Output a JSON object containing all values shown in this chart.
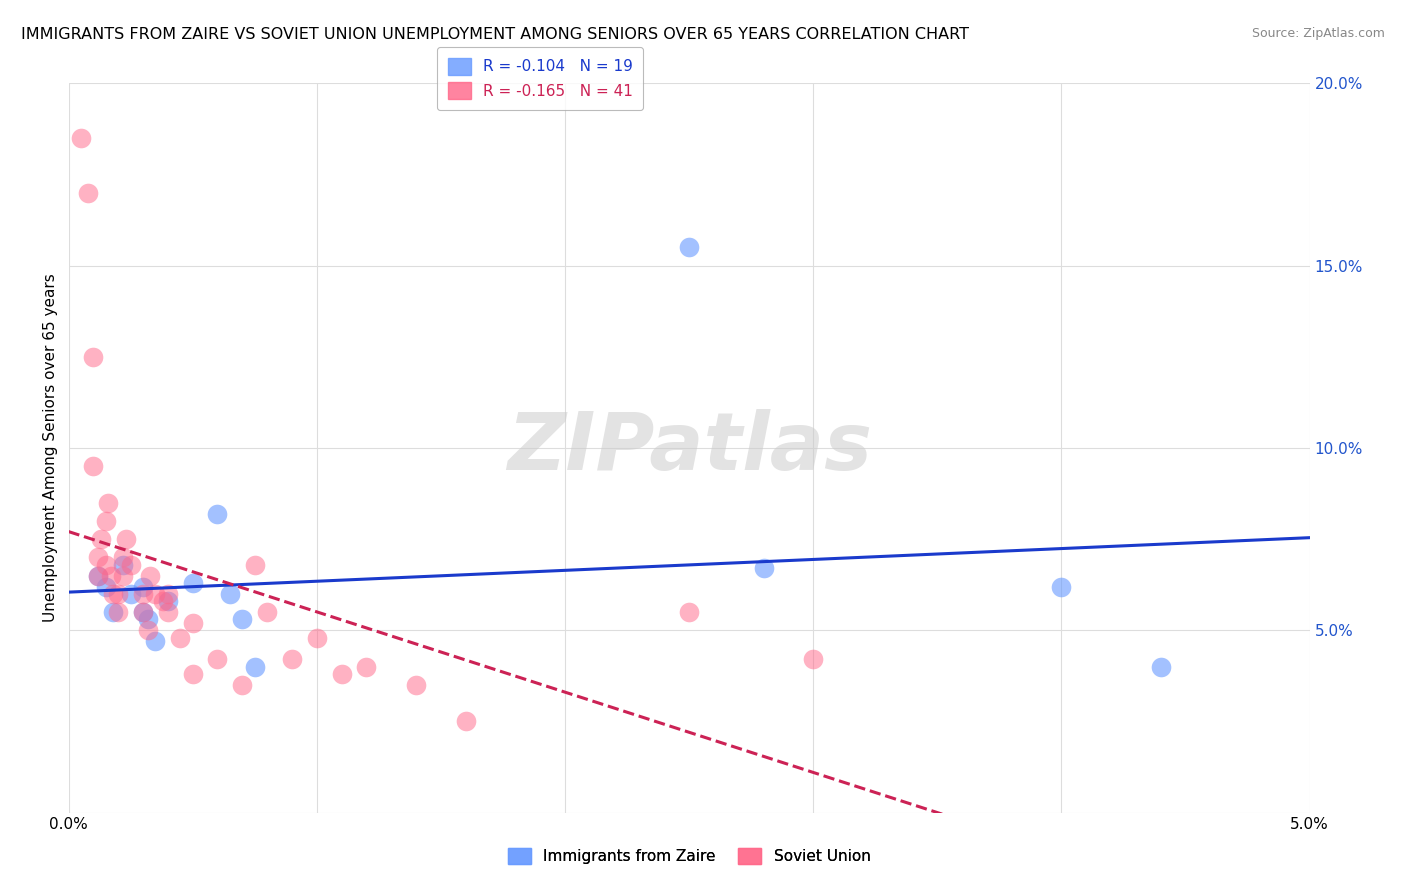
{
  "title": "IMMIGRANTS FROM ZAIRE VS SOVIET UNION UNEMPLOYMENT AMONG SENIORS OVER 65 YEARS CORRELATION CHART",
  "source": "Source: ZipAtlas.com",
  "ylabel": "Unemployment Among Seniors over 65 years",
  "legend_bottom": [
    "Immigrants from Zaire",
    "Soviet Union"
  ],
  "zaire_R": -0.104,
  "zaire_N": 19,
  "soviet_R": -0.165,
  "soviet_N": 41,
  "xlim": [
    0.0,
    0.05
  ],
  "ylim": [
    0.0,
    0.2
  ],
  "x_ticks": [
    0.0,
    0.01,
    0.02,
    0.03,
    0.04,
    0.05
  ],
  "x_tick_labels": [
    "0.0%",
    "",
    "",
    "",
    "",
    "5.0%"
  ],
  "y_ticks": [
    0.0,
    0.05,
    0.1,
    0.15,
    0.2
  ],
  "y_tick_labels": [
    "",
    "5.0%",
    "10.0%",
    "15.0%",
    "20.0%"
  ],
  "zaire_color": "#6699ff",
  "soviet_color": "#ff6688",
  "zaire_line_color": "#1a3acc",
  "soviet_line_color": "#cc2255",
  "bg_color": "#ffffff",
  "grid_color": "#dddddd",
  "zaire_x": [
    0.0012,
    0.0015,
    0.0018,
    0.0022,
    0.0025,
    0.003,
    0.003,
    0.0032,
    0.0035,
    0.004,
    0.005,
    0.006,
    0.0065,
    0.007,
    0.0075,
    0.025,
    0.028,
    0.04,
    0.044
  ],
  "zaire_y": [
    0.065,
    0.062,
    0.055,
    0.068,
    0.06,
    0.062,
    0.055,
    0.053,
    0.047,
    0.058,
    0.063,
    0.082,
    0.06,
    0.053,
    0.04,
    0.155,
    0.067,
    0.062,
    0.04
  ],
  "soviet_x": [
    0.0005,
    0.0008,
    0.001,
    0.001,
    0.0012,
    0.0012,
    0.0013,
    0.0015,
    0.0015,
    0.0016,
    0.0017,
    0.0018,
    0.002,
    0.002,
    0.0022,
    0.0022,
    0.0023,
    0.0025,
    0.003,
    0.003,
    0.0032,
    0.0033,
    0.0035,
    0.0038,
    0.004,
    0.004,
    0.0045,
    0.005,
    0.005,
    0.006,
    0.007,
    0.0075,
    0.008,
    0.009,
    0.01,
    0.011,
    0.012,
    0.014,
    0.016,
    0.025,
    0.03
  ],
  "soviet_y": [
    0.185,
    0.17,
    0.125,
    0.095,
    0.065,
    0.07,
    0.075,
    0.08,
    0.068,
    0.085,
    0.065,
    0.06,
    0.06,
    0.055,
    0.065,
    0.07,
    0.075,
    0.068,
    0.06,
    0.055,
    0.05,
    0.065,
    0.06,
    0.058,
    0.055,
    0.06,
    0.048,
    0.052,
    0.038,
    0.042,
    0.035,
    0.068,
    0.055,
    0.042,
    0.048,
    0.038,
    0.04,
    0.035,
    0.025,
    0.055,
    0.042
  ]
}
